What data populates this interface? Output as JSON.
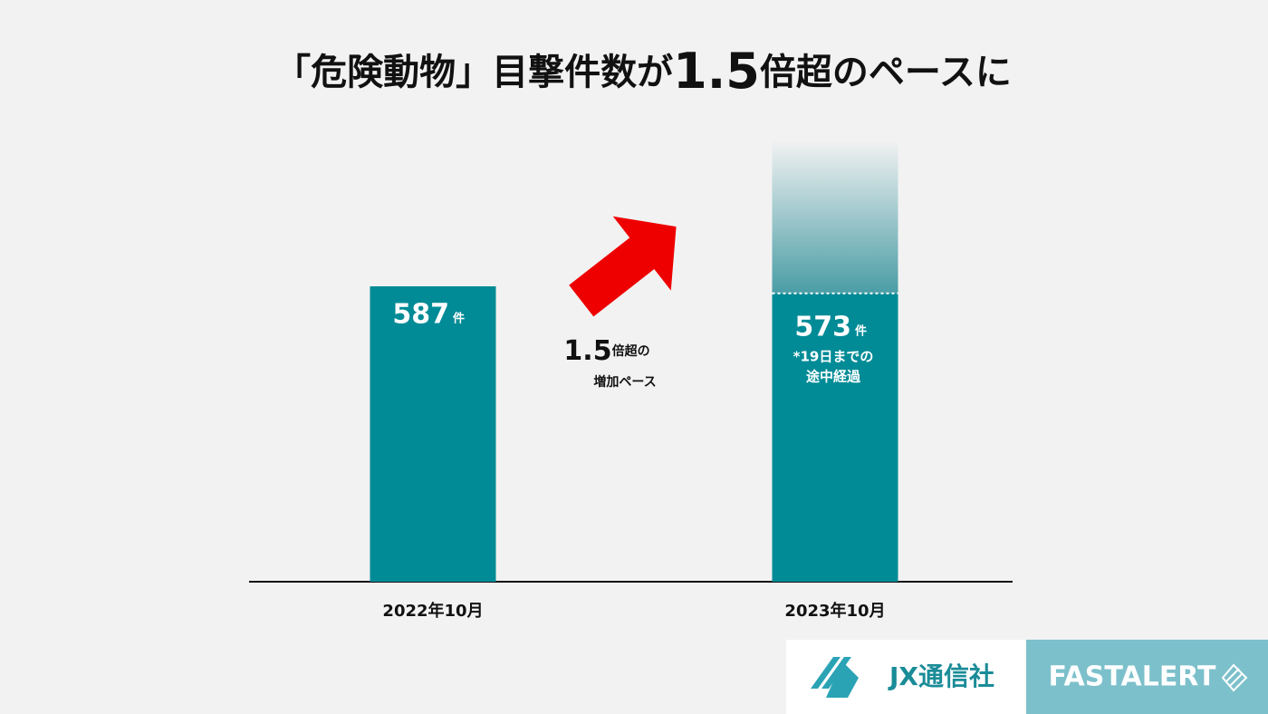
{
  "chart_data": {
    "type": "bar",
    "title": [
      "「危険動物」目撃件数が",
      "1.5",
      "倍超のペースに"
    ],
    "categories": [
      "2022年10月",
      "2023年10月"
    ],
    "values": [
      587,
      573
    ],
    "unit": "件",
    "color": "#008b96",
    "annotation": {
      "multiplier": "1.5",
      "suffix": "倍超の",
      "caption": "増加ペース"
    },
    "bar_note": [
      "*19日までの",
      "途中経過"
    ]
  },
  "footer": {
    "logo_left": "JX通信社",
    "logo_right": "FASTALERT"
  }
}
